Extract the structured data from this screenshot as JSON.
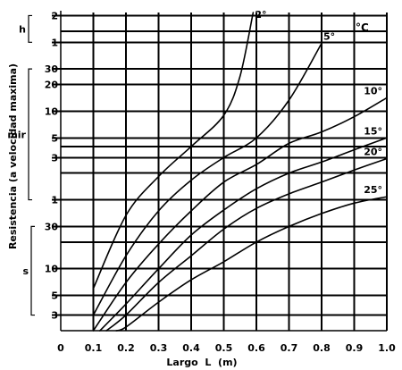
{
  "chart_data": {
    "type": "line",
    "title": "",
    "xlabel": "Largo  L  (m)",
    "ylabel": "Resistencia (a velocidad maxima)",
    "xlim": [
      0,
      1.0
    ],
    "x_ticks": [
      "0",
      "0.1",
      "0.2",
      "0.3",
      "0.4",
      "0.5",
      "0.6",
      "0.7",
      "0.8",
      "0.9",
      "1.0"
    ],
    "x_tick_values": [
      0,
      0.1,
      0.2,
      0.3,
      0.4,
      0.5,
      0.6,
      0.7,
      0.8,
      0.9,
      1.0
    ],
    "y_scale": "log",
    "y_unit_groups": [
      {
        "label": "h",
        "ticks": [
          {
            "label": "2",
            "seconds": 7200
          },
          {
            "label": "1",
            "seconds": 3600
          }
        ]
      },
      {
        "label": "mir",
        "ticks": [
          {
            "label": "30",
            "seconds": 1800
          },
          {
            "label": "20",
            "seconds": 1200
          },
          {
            "label": "10",
            "seconds": 600
          },
          {
            "label": "5",
            "seconds": 300
          },
          {
            "label": "3",
            "seconds": 180
          },
          {
            "label": "1",
            "seconds": 60
          }
        ]
      },
      {
        "label": "s",
        "ticks": [
          {
            "label": "30",
            "seconds": 30
          },
          {
            "label": "10",
            "seconds": 10
          },
          {
            "label": "5",
            "seconds": 5
          },
          {
            "label": "3",
            "seconds": 3
          }
        ]
      }
    ],
    "y_extra_lines_seconds": [
      4800,
      240,
      120,
      20
    ],
    "y_range_seconds": [
      2,
      7800
    ],
    "legend_unit": "°C",
    "legend_placement": "right",
    "grid": true,
    "series": [
      {
        "name": "2°",
        "points": [
          [
            0.1,
            6
          ],
          [
            0.2,
            40
          ],
          [
            0.3,
            110
          ],
          [
            0.4,
            240
          ],
          [
            0.5,
            540
          ],
          [
            0.55,
            1500
          ],
          [
            0.59,
            8000
          ]
        ]
      },
      {
        "name": "5°",
        "points": [
          [
            0.1,
            3
          ],
          [
            0.2,
            14
          ],
          [
            0.3,
            45
          ],
          [
            0.4,
            100
          ],
          [
            0.5,
            180
          ],
          [
            0.6,
            300
          ],
          [
            0.7,
            800
          ],
          [
            0.8,
            3500
          ]
        ]
      },
      {
        "name": "10°",
        "points": [
          [
            0.1,
            1.9
          ],
          [
            0.2,
            7
          ],
          [
            0.3,
            19
          ],
          [
            0.4,
            45
          ],
          [
            0.5,
            95
          ],
          [
            0.6,
            150
          ],
          [
            0.7,
            260
          ],
          [
            0.8,
            350
          ],
          [
            0.9,
            520
          ],
          [
            1.0,
            850
          ]
        ]
      },
      {
        "name": "15°",
        "points": [
          [
            0.12,
            1.9
          ],
          [
            0.2,
            4
          ],
          [
            0.3,
            10
          ],
          [
            0.4,
            24
          ],
          [
            0.5,
            46
          ],
          [
            0.6,
            80
          ],
          [
            0.7,
            120
          ],
          [
            0.8,
            160
          ],
          [
            0.9,
            220
          ],
          [
            1.0,
            300
          ]
        ]
      },
      {
        "name": "20°",
        "points": [
          [
            0.14,
            1.9
          ],
          [
            0.2,
            3
          ],
          [
            0.3,
            7
          ],
          [
            0.4,
            14
          ],
          [
            0.5,
            28
          ],
          [
            0.6,
            48
          ],
          [
            0.7,
            70
          ],
          [
            0.8,
            95
          ],
          [
            0.9,
            130
          ],
          [
            1.0,
            175
          ]
        ]
      },
      {
        "name": "25°",
        "points": [
          [
            0.17,
            1.9
          ],
          [
            0.2,
            2.2
          ],
          [
            0.3,
            4.2
          ],
          [
            0.4,
            7.5
          ],
          [
            0.5,
            12
          ],
          [
            0.6,
            20
          ],
          [
            0.7,
            30
          ],
          [
            0.8,
            42
          ],
          [
            0.9,
            55
          ],
          [
            1.0,
            65
          ]
        ]
      }
    ]
  }
}
